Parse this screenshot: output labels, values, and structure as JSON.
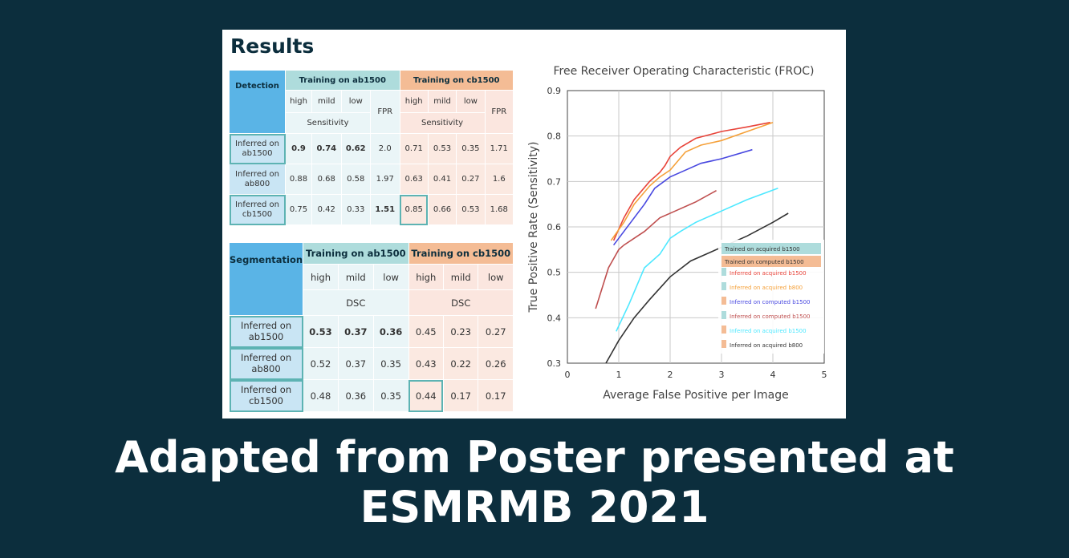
{
  "results_title": "Results",
  "detection_table": {
    "corner": "Detection",
    "group_a": "Training on ab1500",
    "group_b": "Training on cb1500",
    "levels": [
      "high",
      "mild",
      "low"
    ],
    "sensitivity_label": "Sensitivity",
    "fpr_label": "FPR",
    "rows": [
      {
        "label": "Inferred on ab1500",
        "a": [
          "0.9",
          "0.74",
          "0.62",
          "2.0"
        ],
        "b": [
          "0.71",
          "0.53",
          "0.35",
          "1.71"
        ]
      },
      {
        "label": "Inferred on ab800",
        "a": [
          "0.88",
          "0.68",
          "0.58",
          "1.97"
        ],
        "b": [
          "0.63",
          "0.41",
          "0.27",
          "1.6"
        ]
      },
      {
        "label": "Inferred on cb1500",
        "a": [
          "0.75",
          "0.42",
          "0.33",
          "1.51"
        ],
        "b": [
          "0.85",
          "0.66",
          "0.53",
          "1.68"
        ]
      }
    ]
  },
  "segmentation_table": {
    "corner": "Segmentation",
    "group_a": "Training on ab1500",
    "group_b": "Training on cb1500",
    "levels": [
      "high",
      "mild",
      "low"
    ],
    "dsc_label": "DSC",
    "rows": [
      {
        "label": "Inferred on ab1500",
        "a": [
          "0.53",
          "0.37",
          "0.36"
        ],
        "b": [
          "0.45",
          "0.23",
          "0.27"
        ]
      },
      {
        "label": "Inferred on ab800",
        "a": [
          "0.52",
          "0.37",
          "0.35"
        ],
        "b": [
          "0.43",
          "0.22",
          "0.26"
        ]
      },
      {
        "label": "Inferred on cb1500",
        "a": [
          "0.48",
          "0.36",
          "0.35"
        ],
        "b": [
          "0.44",
          "0.17",
          "0.17"
        ]
      }
    ]
  },
  "chart_data": {
    "type": "line",
    "title": "Free Receiver Operating Characteristic (FROC)",
    "xlabel": "Average False Positive per Image",
    "ylabel": "True Positive Rate (Sensitivity)",
    "xlim": [
      0,
      5
    ],
    "ylim": [
      0.3,
      0.9
    ],
    "xticks": [
      0,
      1,
      2,
      3,
      4,
      5
    ],
    "yticks": [
      0.3,
      0.4,
      0.5,
      0.6,
      0.7,
      0.8,
      0.9
    ],
    "grid": true,
    "legend_position": "bottom-right",
    "legend_headers": [
      {
        "text": "Trained on acquired b1500",
        "color": "#aedcdc"
      },
      {
        "text": "Trained on computed b1500",
        "color": "#f4bc95"
      }
    ],
    "series": [
      {
        "name": "Inferred on acquired b1500",
        "marker_color": "#aedcdc",
        "color": "#e8443a",
        "x": [
          0.9,
          1.1,
          1.3,
          1.6,
          1.8,
          1.9,
          2.0,
          2.2,
          2.5,
          3.0,
          3.5,
          3.95
        ],
        "y": [
          0.57,
          0.62,
          0.66,
          0.7,
          0.72,
          0.735,
          0.755,
          0.775,
          0.795,
          0.81,
          0.82,
          0.83
        ]
      },
      {
        "name": "Inferred on acquired b800",
        "marker_color": "#aedcdc",
        "color": "#f5a13a",
        "x": [
          0.85,
          1.1,
          1.3,
          1.6,
          1.8,
          2.0,
          2.3,
          2.6,
          3.0,
          3.5,
          4.0
        ],
        "y": [
          0.57,
          0.61,
          0.65,
          0.69,
          0.71,
          0.725,
          0.765,
          0.78,
          0.79,
          0.81,
          0.83
        ]
      },
      {
        "name": "Inferred on computed b1500",
        "marker_color": "#f4bc95",
        "color": "#4848e0",
        "x": [
          0.9,
          1.1,
          1.3,
          1.5,
          1.7,
          2.0,
          2.3,
          2.6,
          3.0,
          3.6
        ],
        "y": [
          0.56,
          0.59,
          0.62,
          0.65,
          0.685,
          0.71,
          0.725,
          0.74,
          0.75,
          0.77
        ]
      },
      {
        "name": "Inferred on computed b1500",
        "marker_color": "#aedcdc",
        "color": "#bf4f4f",
        "x": [
          0.55,
          0.8,
          1.0,
          1.1,
          1.3,
          1.5,
          1.8,
          2.1,
          2.5,
          2.9
        ],
        "y": [
          0.42,
          0.51,
          0.55,
          0.56,
          0.575,
          0.59,
          0.62,
          0.635,
          0.655,
          0.68
        ]
      },
      {
        "name": "Inferred on acquired b1500",
        "marker_color": "#f4bc95",
        "color": "#4de8ff",
        "x": [
          0.95,
          1.2,
          1.5,
          1.8,
          2.0,
          2.2,
          2.5,
          3.0,
          3.5,
          4.1
        ],
        "y": [
          0.37,
          0.43,
          0.51,
          0.54,
          0.575,
          0.59,
          0.61,
          0.635,
          0.66,
          0.685
        ]
      },
      {
        "name": "Inferred on acquired b800",
        "marker_color": "#f4bc95",
        "color": "#333333",
        "x": [
          0.75,
          1.0,
          1.3,
          1.6,
          2.0,
          2.4,
          3.0,
          3.5,
          4.0,
          4.3
        ],
        "y": [
          0.3,
          0.35,
          0.4,
          0.44,
          0.49,
          0.525,
          0.555,
          0.58,
          0.61,
          0.63
        ]
      }
    ]
  },
  "footer": {
    "line1": "Adapted from Poster presented at",
    "line2": "ESMRMB 2021"
  }
}
